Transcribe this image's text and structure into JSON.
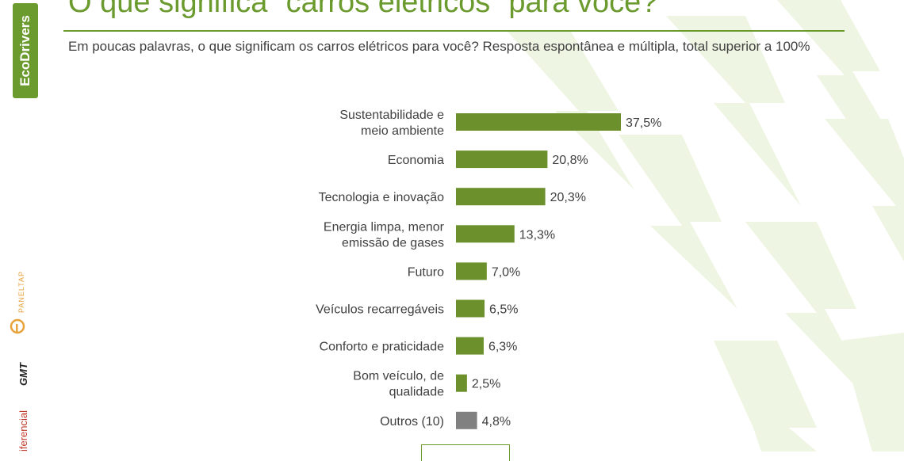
{
  "header": {
    "title": "O que significa “carros elétricos” para você?",
    "subtitle": "Em poucas palavras, o que significam os carros elétricos para você? Resposta espontânea e múltipla, total superior a 100%"
  },
  "logos": {
    "ecodrivers": "EcoDrivers",
    "paneltap": "PANELTAP",
    "gmt": "GMT",
    "diferencial": "iferencial"
  },
  "colors": {
    "accent": "#6b9a2e",
    "bar_green": "#6b902c",
    "bar_gray": "#808080",
    "label_text": "#404040",
    "background_shape": "#eef5e2"
  },
  "chart_data": {
    "type": "bar",
    "orientation": "horizontal",
    "categories": [
      "Sustentabilidade e meio ambiente",
      "Economia",
      "Tecnologia e inovação",
      "Energia limpa, menor emissão de gases",
      "Futuro",
      "Veículos recarregáveis",
      "Conforto e praticidade",
      "Bom veículo, de qualidade",
      "Outros (10)"
    ],
    "category_lines": [
      [
        "Sustentabilidade e",
        "meio ambiente"
      ],
      [
        "Economia"
      ],
      [
        "Tecnologia e inovação"
      ],
      [
        "Energia limpa, menor",
        "emissão de gases"
      ],
      [
        "Futuro"
      ],
      [
        "Veículos recarregáveis"
      ],
      [
        "Conforto e praticidade"
      ],
      [
        "Bom veículo, de",
        "qualidade"
      ],
      [
        "Outros (10)"
      ]
    ],
    "values": [
      37.5,
      20.8,
      20.3,
      13.3,
      7.0,
      6.5,
      6.3,
      2.5,
      4.8
    ],
    "value_labels": [
      "37,5%",
      "20,8%",
      "20,3%",
      "13,3%",
      "7,0%",
      "6,5%",
      "6,3%",
      "2,5%",
      "4,8%"
    ],
    "bar_colors": [
      "#6b902c",
      "#6b902c",
      "#6b902c",
      "#6b902c",
      "#6b902c",
      "#6b902c",
      "#6b902c",
      "#6b902c",
      "#808080"
    ],
    "xlim": [
      0,
      37.5
    ],
    "grid": false,
    "legend": "none",
    "xlabel": "",
    "ylabel": ""
  }
}
